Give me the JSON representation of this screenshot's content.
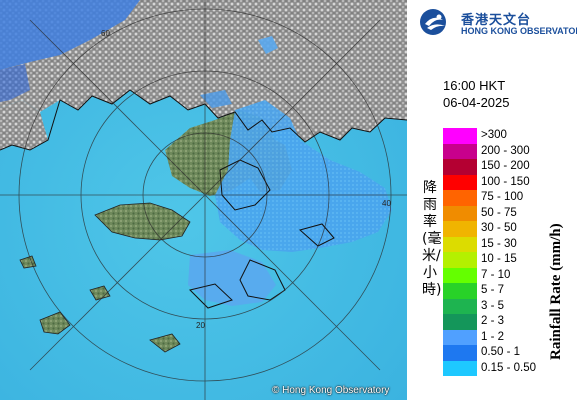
{
  "map": {
    "copyright": "© Hong Kong Observatory",
    "range_rings": [
      {
        "label": "60"
      },
      {
        "label": "40"
      },
      {
        "label": "20"
      }
    ]
  },
  "logo": {
    "name_cn": "香港天文台",
    "name_en": "HONG KONG OBSERVATORY"
  },
  "timestamp": {
    "time": "16:00 HKT",
    "date": "06-04-2025"
  },
  "legend": {
    "title_cn": "降雨率(毫米/小時)",
    "title_en": "Rainfall Rate (mm/h)",
    "items": [
      {
        "label": ">300",
        "color": "#ff00ff"
      },
      {
        "label": "200 - 300",
        "color": "#c8008c"
      },
      {
        "label": "150 - 200",
        "color": "#b40032"
      },
      {
        "label": "100 - 150",
        "color": "#ff0000"
      },
      {
        "label": "75 - 100",
        "color": "#ff6400"
      },
      {
        "label": "50 - 75",
        "color": "#f08c00"
      },
      {
        "label": "30 - 50",
        "color": "#f0b400"
      },
      {
        "label": "15 - 30",
        "color": "#dcdc00"
      },
      {
        "label": "10 - 15",
        "color": "#b4f000"
      },
      {
        "label": "7 - 10",
        "color": "#64ff00"
      },
      {
        "label": "5 - 7",
        "color": "#28d228"
      },
      {
        "label": "3 - 5",
        "color": "#1eb450"
      },
      {
        "label": "2 - 3",
        "color": "#14965a"
      },
      {
        "label": "1 - 2",
        "color": "#50a0ff"
      },
      {
        "label": "0.50 - 1",
        "color": "#1e78f0"
      },
      {
        "label": "0.15 - 0.50",
        "color": "#1ec8ff"
      }
    ]
  }
}
